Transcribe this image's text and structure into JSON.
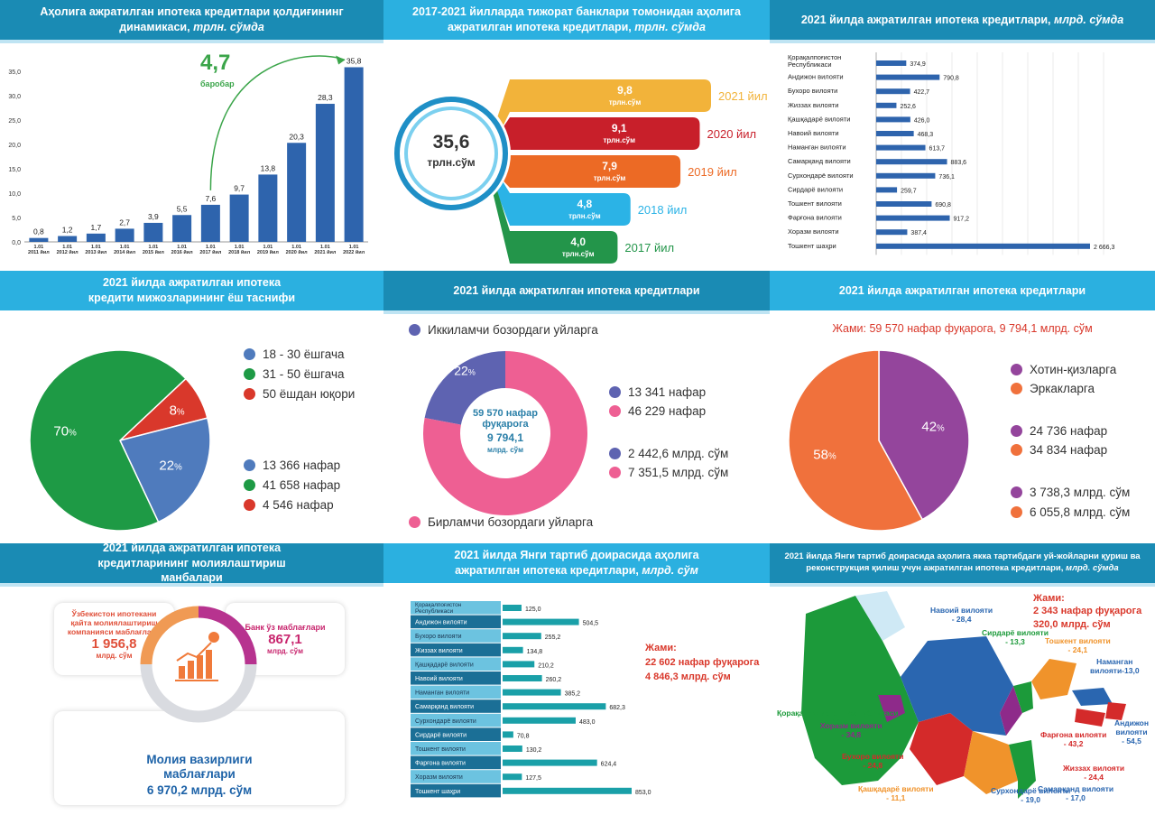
{
  "p1": {
    "title_main": "Аҳолига ажратилган ипотека кредитлари қолдиғининг динамикаси,",
    "title_unit": "трлн. сўмда",
    "multiplier": "4,7",
    "multiplier_label": "баробар"
  },
  "p2": {
    "title_main": "2017-2021 йилларда тижорат банклари томонидан аҳолига ажратилган ипотека кредитлари,",
    "title_unit": "трлн. сўмда",
    "total": "35,6",
    "total_unit": "трлн.сўм",
    "unit_small": "трлн.сўм"
  },
  "p3": {
    "title_main": "2021 йилда ажратилган ипотека кредитлари,",
    "title_unit": "млрд. сўмда"
  },
  "p4": {
    "title": "2021 йилда ажратилган ипотека кредити мижозларининг ёш таснифи",
    "legend": [
      "18 - 30 ёшгача",
      "31 - 50 ёшгача",
      "50 ёшдан юқори"
    ],
    "counts": [
      "13 366 нафар",
      "41 658 нафар",
      "4 546 нафар"
    ]
  },
  "p5": {
    "title": "2021 йилда ажратилган ипотека кредитлари",
    "secondary_label": "Иккиламчи бозордаги уйларга",
    "primary_label": "Бирламчи бозордаги уйларга",
    "center_line1": "59 570 нафар",
    "center_line2": "фуқарога",
    "center_line3": "9 794,1",
    "center_line4": "млрд. сўм",
    "counts": [
      "13 341 нафар",
      "46 229 нафар"
    ],
    "sums": [
      "2 442,6 млрд. сўм",
      "7 351,5 млрд. сўм"
    ]
  },
  "p6": {
    "title": "2021 йилда ажратилган ипотека кредитлари",
    "total": "Жами: 59 570 нафар фуқарога, 9 794,1 млрд. сўм",
    "legend": [
      "Хотин-қизларга",
      "Эркакларга"
    ],
    "counts": [
      "24 736 нафар",
      "34 834 нафар"
    ],
    "sums": [
      "3 738,3 млрд. сўм",
      "6 055,8 млрд. сўм"
    ]
  },
  "p7": {
    "title": "2021 йилда ажратилган ипотека кредитларининг молиялаштириш манбалари",
    "src1_label": "Ўзбекистон ипотекани қайта молиялаштириш компанияси маблағлари",
    "src1_value": "1 956,8",
    "src1_unit": "млрд. сўм",
    "src2_label": "Банк ўз маблағлари",
    "src2_value": "867,1",
    "src2_unit": "млрд. сўм",
    "src3_label": "Молия вазирлиги маблағлари",
    "src3_value": "6 970,2 млрд. сўм"
  },
  "p8": {
    "title_main": "2021 йилда Янги тартиб доирасида аҳолига ажратилган ипотека кредитлари,",
    "title_unit": "млрд. сўм",
    "total_label": "Жами:",
    "total_people": "22 602 нафар фуқарога",
    "total_sum": "4 846,3 млрд. сўм"
  },
  "p9": {
    "title_main": "2021 йилда Янги тартиб доирасида аҳолига якка тартибдаги уй-жойларни қуриш ва реконструкция қилиш учун ажратилган ипотека кредитлари,",
    "title_unit": "млрд. сўмда",
    "total_label": "Жами:",
    "total_people": "2 343  нафар фуқарога",
    "total_sum": "320,0  млрд. сўм",
    "regions": [
      {
        "name": "Навоий вилояти - 28,4",
        "color": "#2a66b0"
      },
      {
        "name": "Сирдарё вилояти - 13,3",
        "color": "#1c9a3a"
      },
      {
        "name": "Тошкент вилояти - 24,1",
        "color": "#f0932b"
      },
      {
        "name": "Наманган вилояти-13,0",
        "color": "#2a66b0"
      },
      {
        "name": "Андижон вилояти - 54,5",
        "color": "#2a66b0"
      },
      {
        "name": "Фарғона вилояти - 43,2",
        "color": "#d42a2a"
      },
      {
        "name": "Жиззах вилояти - 24,4",
        "color": "#d42a2a"
      },
      {
        "name": "Самарқанд вилояти - 17,0",
        "color": "#2a66b0"
      },
      {
        "name": "Сурхондарё вилояти - 19,0",
        "color": "#2a66b0"
      },
      {
        "name": "Қашқадарё вилояти - 11,1",
        "color": "#f0932b"
      },
      {
        "name": "Бухоро вилояти - 24,8",
        "color": "#d42a2a"
      },
      {
        "name": "Хоразм вилояти - 34,8",
        "color": "#8e2a8a"
      },
      {
        "name": "Қорақалпоғистон Республикаси - 12,4",
        "color": "#1c9a3a"
      }
    ]
  },
  "chart_data": [
    {
      "id": "dynamics",
      "type": "bar",
      "categories": [
        "1.01 2011 йил",
        "1.01 2012 йил",
        "1.01 2013 йил",
        "1.01 2014 йил",
        "1.01 2015 йил",
        "1.01 2016 йил",
        "1.01 2017 йил",
        "1.01 2018 йил",
        "1.01 2019 йил",
        "1.01 2020 йил",
        "1.01 2021 йил",
        "1.01 2022 йил"
      ],
      "values": [
        0.8,
        1.2,
        1.7,
        2.7,
        3.9,
        5.5,
        7.6,
        9.7,
        13.8,
        20.3,
        28.3,
        35.8
      ],
      "value_labels": [
        "0,8",
        "1,2",
        "1,7",
        "2,7",
        "3,9",
        "5,5",
        "7,6",
        "9,7",
        "13,8",
        "20,3",
        "28,3",
        "35,8"
      ],
      "yticks": [
        "0,0",
        "5,0",
        "10,0",
        "15,0",
        "20,0",
        "25,0",
        "30,0",
        "35,0"
      ],
      "ylim": [
        0,
        37
      ],
      "color": "#2e64ad"
    },
    {
      "id": "yearly",
      "type": "bar",
      "categories": [
        "2021 йил",
        "2020 йил",
        "2019 йил",
        "2018 йил",
        "2017 йил"
      ],
      "values": [
        9.8,
        9.1,
        7.9,
        4.8,
        4.0
      ],
      "value_labels": [
        "9,8",
        "9,1",
        "7,9",
        "4,8",
        "4,0"
      ],
      "colors": [
        "#f2b33a",
        "#c81f2a",
        "#ec6a25",
        "#2bb3e6",
        "#23954a"
      ]
    },
    {
      "id": "regions_2021",
      "type": "bar",
      "categories": [
        "Қорақалпоғистон Республикаси",
        "Андижон вилояти",
        "Бухоро вилояти",
        "Жиззах вилояти",
        "Қашқадарё вилояти",
        "Навоий вилояти",
        "Наманган вилояти",
        "Самарқанд вилояти",
        "Сурхондарё вилояти",
        "Сирдарё вилояти",
        "Тошкент вилояти",
        "Фарғона вилояти",
        "Хоразм вилояти",
        "Тошкент шаҳри"
      ],
      "values": [
        374.9,
        790.8,
        422.7,
        252.6,
        426.0,
        468.3,
        613.7,
        883.6,
        736.1,
        259.7,
        690.8,
        917.2,
        387.4,
        2666.3
      ],
      "value_labels": [
        "374,9",
        "790,8",
        "422,7",
        "252,6",
        "426,0",
        "468,3",
        "613,7",
        "883,6",
        "736,1",
        "259,7",
        "690,8",
        "917,2",
        "387,4",
        "2 666,3"
      ],
      "color": "#2e64ad"
    },
    {
      "id": "age",
      "type": "pie",
      "labels": [
        "18 - 30 ёшгача",
        "31 - 50 ёшгача",
        "50 ёшдан юқори"
      ],
      "values": [
        22,
        70,
        8
      ],
      "colors": [
        "#4f7bbd",
        "#1e9a45",
        "#d9382b"
      ]
    },
    {
      "id": "market",
      "type": "pie",
      "labels": [
        "Иккиламчи бозордаги уйларга",
        "Бирламчи бозордаги уйларга"
      ],
      "values": [
        22,
        78
      ],
      "colors": [
        "#5e63b1",
        "#ee5f93"
      ]
    },
    {
      "id": "gender",
      "type": "pie",
      "labels": [
        "Хотин-қизларга",
        "Эркакларга"
      ],
      "values": [
        42,
        58
      ],
      "colors": [
        "#94459c",
        "#f0713c"
      ]
    },
    {
      "id": "new_order",
      "type": "bar",
      "categories": [
        "Қорақалпоғистон Республикаси",
        "Андижон вилояти",
        "Бухоро вилояти",
        "Жиззах вилояти",
        "Қашқадарё вилояти",
        "Навоий вилояти",
        "Наманган вилояти",
        "Самарқанд вилояти",
        "Сурхондарё вилояти",
        "Сирдарё вилояти",
        "Тошкент вилояти",
        "Фарғона вилояти",
        "Хоразм вилояти",
        "Тошкент шаҳри"
      ],
      "values": [
        125.0,
        504.5,
        255.2,
        134.8,
        210.2,
        260.2,
        385.2,
        682.3,
        483.0,
        70.8,
        130.2,
        624.4,
        127.5,
        853.0
      ],
      "value_labels": [
        "125,0",
        "504,5",
        "255,2",
        "134,8",
        "210,2",
        "260,2",
        "385,2",
        "682,3",
        "483,0",
        "70,8",
        "130,2",
        "624,4",
        "127,5",
        "853,0"
      ],
      "color": "#1aa0a8"
    }
  ]
}
